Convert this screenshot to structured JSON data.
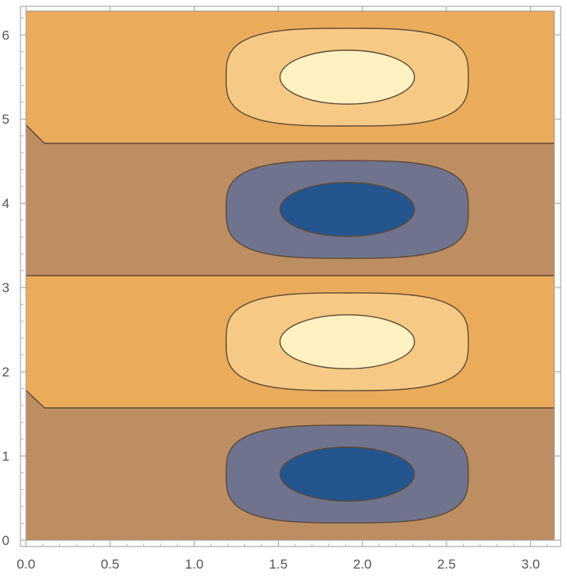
{
  "chart_data": {
    "type": "contour",
    "title": "",
    "xlabel": "",
    "ylabel": "",
    "xlim": [
      0,
      3.14159
    ],
    "ylim": [
      0,
      6.28319
    ],
    "x_ticks": [
      0.0,
      0.5,
      1.0,
      1.5,
      2.0,
      2.5,
      3.0
    ],
    "x_tick_labels": [
      "0.0",
      "0.5",
      "1.0",
      "1.5",
      "2.0",
      "2.5",
      "3.0"
    ],
    "y_ticks": [
      0,
      1,
      2,
      3,
      4,
      5,
      6
    ],
    "y_tick_labels": [
      "0",
      "1",
      "2",
      "3",
      "4",
      "5",
      "6"
    ],
    "grid": false,
    "colors": {
      "high_band": "#eaab5b",
      "low_band": "#be8e63",
      "peak_mid": "#f6ca84",
      "peak_core": "#fff1c2",
      "trough_mid": "#70738d",
      "trough_core": "#24558e",
      "contour_line": "#5e4a38"
    },
    "bands": [
      {
        "kind": "low",
        "y_min": 0.0,
        "y_max": 1.5708,
        "left_edge_y": 1.78
      },
      {
        "kind": "high",
        "y_min": 1.5708,
        "y_max": 3.1416
      },
      {
        "kind": "low",
        "y_min": 3.1416,
        "y_max": 4.7124,
        "left_edge_y": 4.93
      },
      {
        "kind": "high",
        "y_min": 4.7124,
        "y_max": 6.2832
      }
    ],
    "extrema": [
      {
        "kind": "trough",
        "x": 1.91,
        "y": 0.785,
        "outer_rx": 0.72,
        "outer_ry": 0.58,
        "inner_rx": 0.4,
        "inner_ry": 0.32
      },
      {
        "kind": "peak",
        "x": 1.91,
        "y": 2.356,
        "outer_rx": 0.72,
        "outer_ry": 0.58,
        "inner_rx": 0.4,
        "inner_ry": 0.32
      },
      {
        "kind": "trough",
        "x": 1.91,
        "y": 3.927,
        "outer_rx": 0.72,
        "outer_ry": 0.58,
        "inner_rx": 0.4,
        "inner_ry": 0.32
      },
      {
        "kind": "peak",
        "x": 1.91,
        "y": 5.498,
        "outer_rx": 0.72,
        "outer_ry": 0.58,
        "inner_rx": 0.4,
        "inner_ry": 0.32
      }
    ],
    "notch_x": 0.11
  }
}
